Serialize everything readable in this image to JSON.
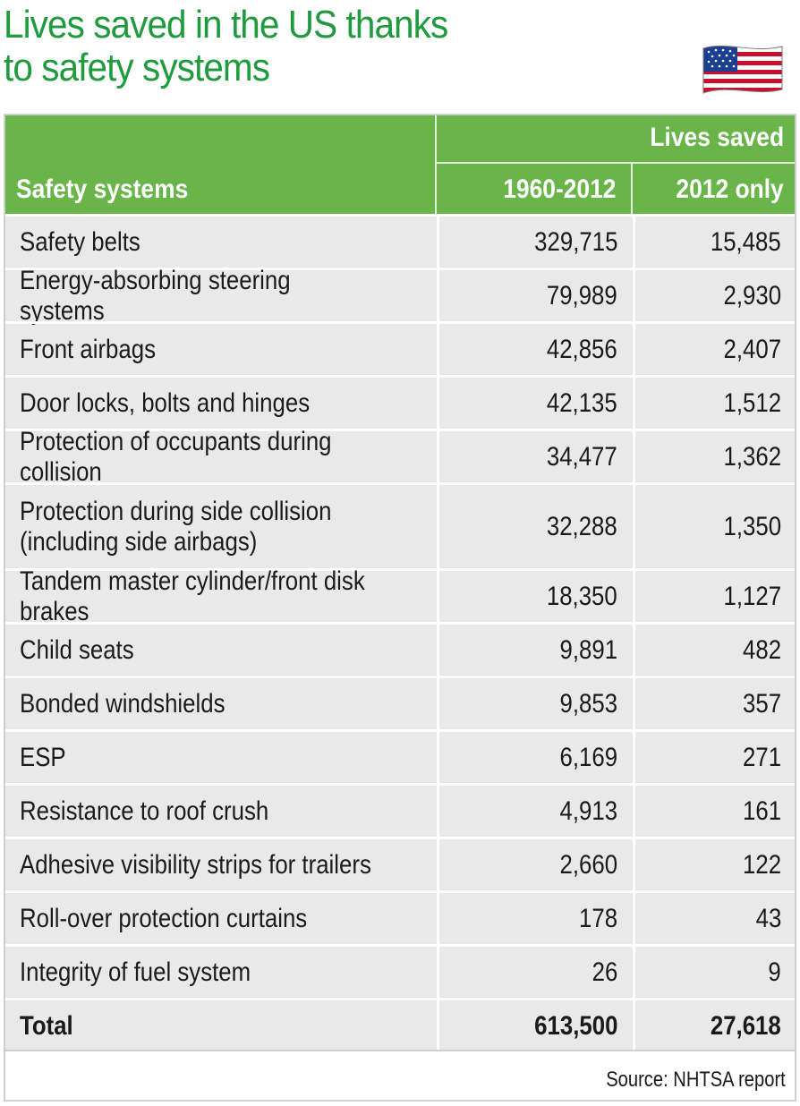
{
  "title": {
    "line1": "Lives saved in the US thanks",
    "line2": "to safety systems"
  },
  "flag": {
    "icon": "us-flag-icon"
  },
  "table": {
    "group_header": "Lives saved",
    "col_system": "Safety systems",
    "col_period1": "1960-2012",
    "col_period2": "2012 only",
    "rows": [
      {
        "name": "Safety belts",
        "v1": "329,715",
        "v2": "15,485"
      },
      {
        "name": "Energy-absorbing steering systems",
        "v1": "79,989",
        "v2": "2,930"
      },
      {
        "name": "Front airbags",
        "v1": "42,856",
        "v2": "2,407"
      },
      {
        "name": "Door locks, bolts and hinges",
        "v1": "42,135",
        "v2": "1,512"
      },
      {
        "name": "Protection of occupants during collision",
        "v1": "34,477",
        "v2": "1,362"
      },
      {
        "name": "Protection during side collision (including side airbags)",
        "v1": "32,288",
        "v2": "1,350"
      },
      {
        "name": "Tandem master cylinder/front disk brakes",
        "v1": "18,350",
        "v2": "1,127"
      },
      {
        "name": "Child seats",
        "v1": "9,891",
        "v2": "482"
      },
      {
        "name": "Bonded windshields",
        "v1": "9,853",
        "v2": "357"
      },
      {
        "name": "ESP",
        "v1": "6,169",
        "v2": "271"
      },
      {
        "name": "Resistance to roof crush",
        "v1": "4,913",
        "v2": "161"
      },
      {
        "name": "Adhesive visibility strips for trailers",
        "v1": "2,660",
        "v2": "122"
      },
      {
        "name": "Roll-over protection curtains",
        "v1": "178",
        "v2": "43"
      },
      {
        "name": "Integrity of fuel system",
        "v1": "26",
        "v2": "9"
      }
    ],
    "total": {
      "name": "Total",
      "v1": "613,500",
      "v2": "27,618"
    }
  },
  "source": "Source: NHTSA report",
  "colors": {
    "title": "#1f9a3c",
    "header_bg": "#6ab54a",
    "row_bg": "#e9e9e9"
  }
}
